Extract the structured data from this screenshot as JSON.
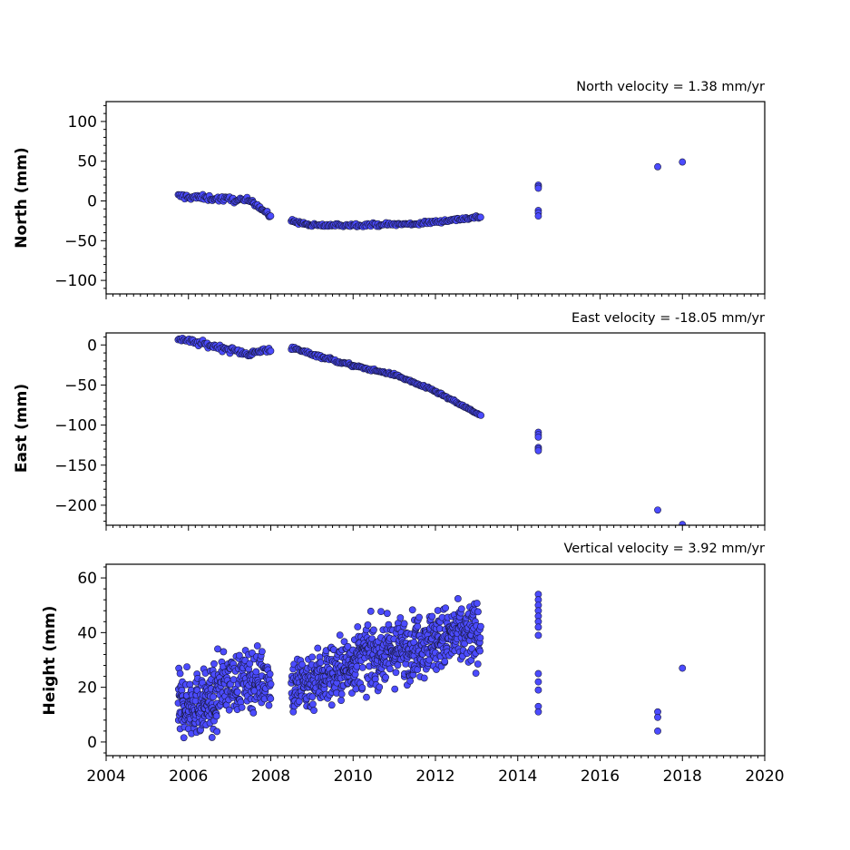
{
  "figure": {
    "background": "#ffffff",
    "marker_color": "#4b4bff",
    "marker_edge": "#1a1a40"
  },
  "chart_data": [
    {
      "type": "scatter",
      "title": "North velocity = 1.38 mm/yr",
      "xlabel": "",
      "ylabel": "North (mm)",
      "xlim": [
        2004,
        2020
      ],
      "ylim": [
        -117,
        125
      ],
      "yticks": [
        -100,
        -50,
        0,
        50,
        100
      ],
      "segments": [
        {
          "x_start": 2005.75,
          "x_end": 2007.55,
          "y_start": 6,
          "y_end": 0,
          "spread": 5,
          "count": 70
        },
        {
          "x_start": 2007.55,
          "x_end": 2008.0,
          "y_start": 0,
          "y_end": -20,
          "spread": 4,
          "count": 22
        },
        {
          "x_start": 2008.5,
          "x_end": 2009.0,
          "y_start": -25,
          "y_end": -31,
          "spread": 3,
          "count": 24
        },
        {
          "x_start": 2009.0,
          "x_end": 2011.5,
          "y_start": -31,
          "y_end": -29,
          "spread": 3,
          "count": 90
        },
        {
          "x_start": 2011.5,
          "x_end": 2013.1,
          "y_start": -29,
          "y_end": -20,
          "spread": 3,
          "count": 60
        }
      ],
      "points": [
        {
          "x": 2014.5,
          "y": 20
        },
        {
          "x": 2014.5,
          "y": 18
        },
        {
          "x": 2014.5,
          "y": 16
        },
        {
          "x": 2014.5,
          "y": -12
        },
        {
          "x": 2014.5,
          "y": -15
        },
        {
          "x": 2014.5,
          "y": -19
        },
        {
          "x": 2017.4,
          "y": 43
        },
        {
          "x": 2018.0,
          "y": 49
        }
      ]
    },
    {
      "type": "scatter",
      "title": "East velocity = -18.05 mm/yr",
      "xlabel": "",
      "ylabel": "East (mm)",
      "xlim": [
        2004,
        2020
      ],
      "ylim": [
        -225,
        15
      ],
      "yticks": [
        -200,
        -150,
        -100,
        -50,
        0
      ],
      "segments": [
        {
          "x_start": 2005.75,
          "x_end": 2007.55,
          "y_start": 8,
          "y_end": -12,
          "spread": 5,
          "count": 70
        },
        {
          "x_start": 2007.55,
          "x_end": 2008.0,
          "y_start": -10,
          "y_end": -5,
          "spread": 5,
          "count": 20
        },
        {
          "x_start": 2008.5,
          "x_end": 2010.0,
          "y_start": -4,
          "y_end": -26,
          "spread": 3,
          "count": 60
        },
        {
          "x_start": 2010.0,
          "x_end": 2011.0,
          "y_start": -26,
          "y_end": -37,
          "spread": 2,
          "count": 40
        },
        {
          "x_start": 2011.0,
          "x_end": 2012.0,
          "y_start": -37,
          "y_end": -58,
          "spread": 2,
          "count": 40
        },
        {
          "x_start": 2012.0,
          "x_end": 2013.1,
          "y_start": -58,
          "y_end": -88,
          "spread": 2,
          "count": 45
        }
      ],
      "points": [
        {
          "x": 2014.5,
          "y": -109
        },
        {
          "x": 2014.5,
          "y": -112
        },
        {
          "x": 2014.5,
          "y": -115
        },
        {
          "x": 2014.5,
          "y": -128
        },
        {
          "x": 2014.5,
          "y": -130
        },
        {
          "x": 2014.5,
          "y": -132
        },
        {
          "x": 2017.4,
          "y": -206
        },
        {
          "x": 2018.0,
          "y": -224
        }
      ]
    },
    {
      "type": "scatter",
      "title": "Vertical velocity = 3.92 mm/yr",
      "xlabel": "",
      "ylabel": "Height (mm)",
      "xlim": [
        2004,
        2020
      ],
      "ylim": [
        -5,
        65
      ],
      "yticks": [
        0,
        20,
        40,
        60
      ],
      "xticks": [
        2004,
        2006,
        2008,
        2010,
        2012,
        2014,
        2016,
        2018,
        2020
      ],
      "segments": [
        {
          "x_start": 2005.75,
          "x_end": 2006.7,
          "y_start": 13,
          "y_end": 15,
          "spread": 16,
          "count": 170
        },
        {
          "x_start": 2006.7,
          "x_end": 2008.0,
          "y_start": 21,
          "y_end": 24,
          "spread": 15,
          "count": 170
        },
        {
          "x_start": 2008.5,
          "x_end": 2010.0,
          "y_start": 20,
          "y_end": 28,
          "spread": 16,
          "count": 220
        },
        {
          "x_start": 2010.0,
          "x_end": 2011.5,
          "y_start": 30,
          "y_end": 35,
          "spread": 16,
          "count": 230
        },
        {
          "x_start": 2011.5,
          "x_end": 2013.1,
          "y_start": 36,
          "y_end": 40,
          "spread": 16,
          "count": 240
        }
      ],
      "points": [
        {
          "x": 2014.5,
          "y": 54
        },
        {
          "x": 2014.5,
          "y": 52
        },
        {
          "x": 2014.5,
          "y": 50
        },
        {
          "x": 2014.5,
          "y": 48
        },
        {
          "x": 2014.5,
          "y": 46
        },
        {
          "x": 2014.5,
          "y": 44
        },
        {
          "x": 2014.5,
          "y": 42
        },
        {
          "x": 2014.5,
          "y": 39
        },
        {
          "x": 2014.5,
          "y": 25
        },
        {
          "x": 2014.5,
          "y": 22
        },
        {
          "x": 2014.5,
          "y": 19
        },
        {
          "x": 2014.5,
          "y": 13
        },
        {
          "x": 2014.5,
          "y": 11
        },
        {
          "x": 2017.4,
          "y": 11
        },
        {
          "x": 2017.4,
          "y": 9
        },
        {
          "x": 2017.4,
          "y": 4
        },
        {
          "x": 2018.0,
          "y": 27
        }
      ]
    }
  ]
}
